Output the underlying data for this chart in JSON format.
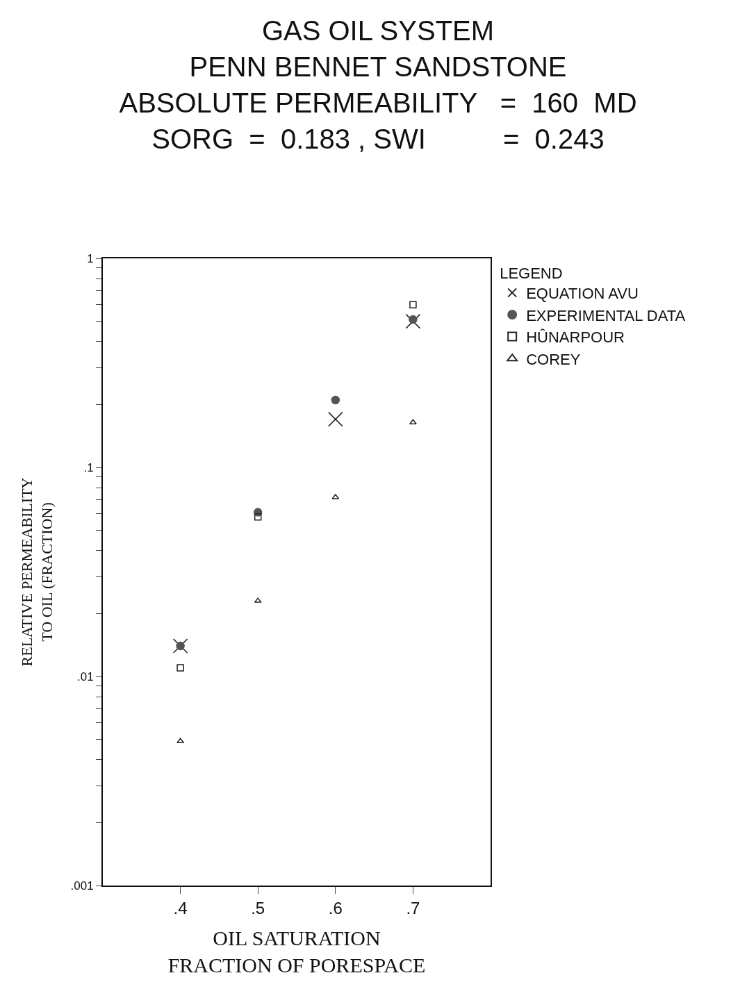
{
  "chart_data": {
    "type": "scatter",
    "title": "GAS OIL SYSTEM\nPENN BENNET SANDSTONE\nABSOLUTE PERMEABILITY   =  160  MD\nSORG  =  0.183 , SWI          =  0.243",
    "xlabel": "OIL SATURATION\nFRACTION OF PORESPACE",
    "ylabel": "RELATIVE PERMEABILITY\nTO OIL (FRACTION)",
    "legend_title": "LEGEND",
    "legend": "top right",
    "log": "y",
    "grid": false,
    "x": [
      0.4,
      0.5,
      0.6,
      0.7
    ],
    "xlim": [
      0.3,
      0.8
    ],
    "xticks": [
      {
        "value": 0.4,
        "label": ".4"
      },
      {
        "value": 0.5,
        "label": ".5"
      },
      {
        "value": 0.6,
        "label": ".6"
      },
      {
        "value": 0.7,
        "label": ".7"
      }
    ],
    "ylim": [
      0.001,
      1
    ],
    "yticks": [
      {
        "value": 0.001,
        "label": ".001"
      },
      {
        "value": 0.002,
        "label": null
      },
      {
        "value": 0.003,
        "label": null
      },
      {
        "value": 0.004,
        "label": null
      },
      {
        "value": 0.005,
        "label": null
      },
      {
        "value": 0.006,
        "label": null
      },
      {
        "value": 0.007,
        "label": null
      },
      {
        "value": 0.008,
        "label": null
      },
      {
        "value": 0.009,
        "label": null
      },
      {
        "value": 0.01,
        "label": ".01"
      },
      {
        "value": 0.02,
        "label": null
      },
      {
        "value": 0.03,
        "label": null
      },
      {
        "value": 0.04,
        "label": null
      },
      {
        "value": 0.05,
        "label": null
      },
      {
        "value": 0.06,
        "label": null
      },
      {
        "value": 0.07,
        "label": null
      },
      {
        "value": 0.08,
        "label": null
      },
      {
        "value": 0.09,
        "label": null
      },
      {
        "value": 0.1,
        "label": ".1"
      },
      {
        "value": 0.2,
        "label": null
      },
      {
        "value": 0.3,
        "label": null
      },
      {
        "value": 0.4,
        "label": null
      },
      {
        "value": 0.5,
        "label": null
      },
      {
        "value": 0.6,
        "label": null
      },
      {
        "value": 0.7,
        "label": null
      },
      {
        "value": 0.8,
        "label": null
      },
      {
        "value": 0.9,
        "label": null
      },
      {
        "value": 1,
        "label": "1"
      }
    ],
    "series": [
      {
        "name": "EQUATION AVU",
        "color": "#222222",
        "marker": "cross",
        "values": [
          0.014,
          null,
          0.17,
          0.5
        ]
      },
      {
        "name": "EXPERIMENTAL DATA",
        "color": "#555555",
        "marker": "circle",
        "values": [
          0.014,
          0.061,
          0.21,
          0.51
        ]
      },
      {
        "name": "HÛNARPOUR",
        "color": "#222222",
        "marker": "square",
        "values": [
          0.011,
          0.058,
          null,
          0.6
        ]
      },
      {
        "name": "COREY",
        "color": "#222222",
        "marker": "triangle",
        "values": [
          0.0049,
          0.023,
          0.072,
          0.164
        ]
      }
    ]
  }
}
